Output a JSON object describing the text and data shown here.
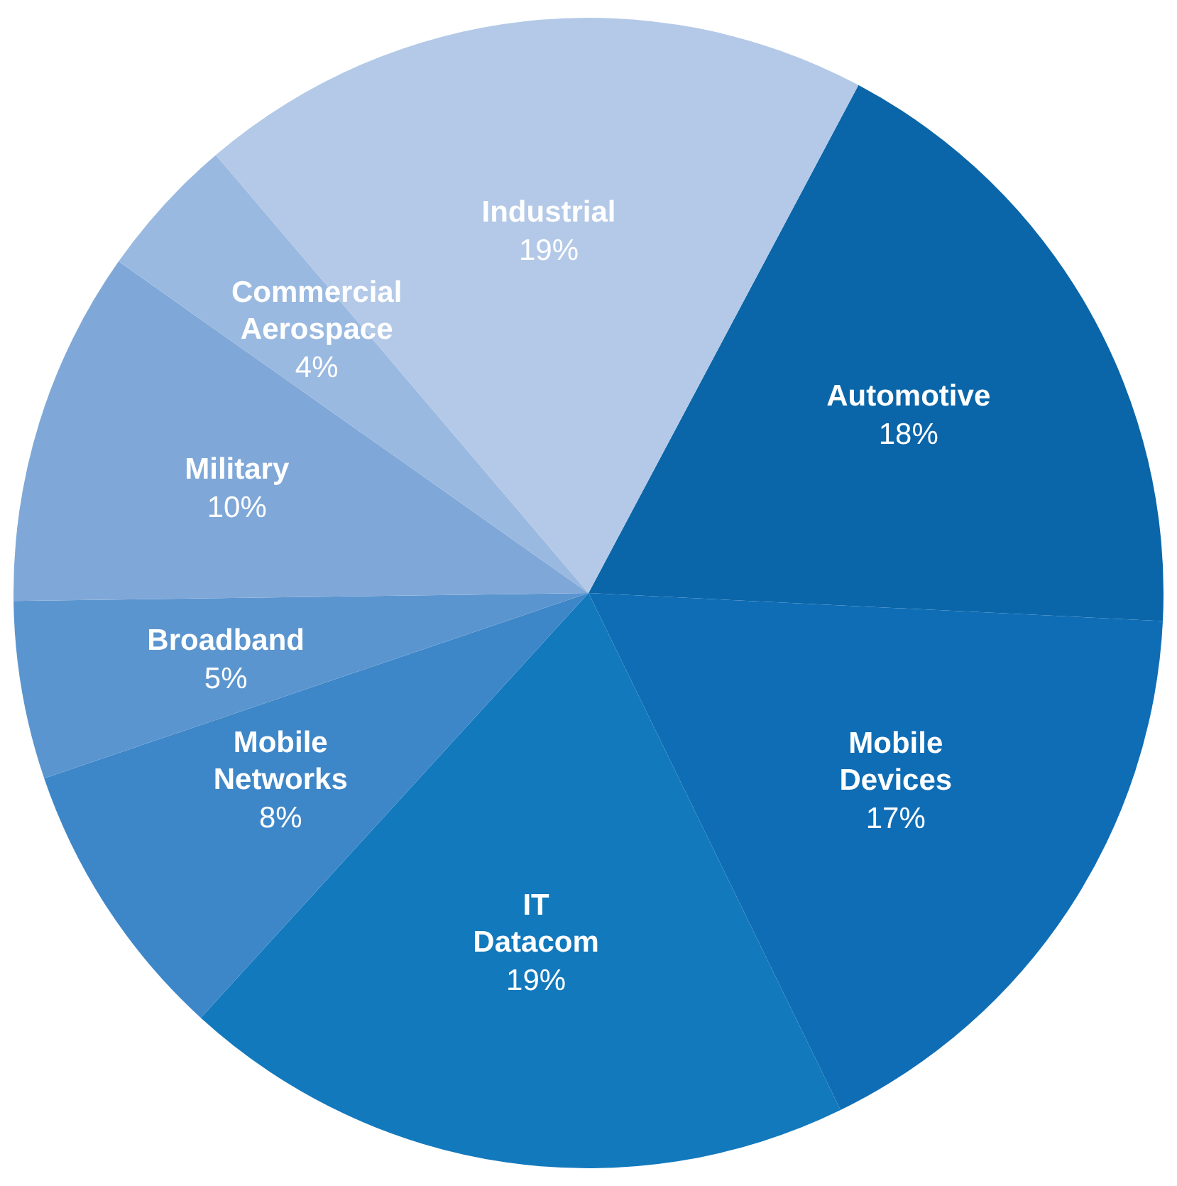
{
  "chart_data": {
    "type": "pie",
    "categories": [
      "Automotive",
      "Mobile Devices",
      "IT Datacom",
      "Mobile Networks",
      "Broadband",
      "Military",
      "Commercial Aerospace",
      "Industrial"
    ],
    "values": [
      18,
      17,
      19,
      8,
      5,
      10,
      4,
      19
    ],
    "value_labels": [
      "18%",
      "17%",
      "19%",
      "8%",
      "5%",
      "10%",
      "4%",
      "19%"
    ],
    "colors": [
      "#0a66a8",
      "#0f6db5",
      "#1279bc",
      "#3d87c8",
      "#5b95cf",
      "#7fa8d8",
      "#9ab9e0",
      "#b3c9e7"
    ]
  }
}
